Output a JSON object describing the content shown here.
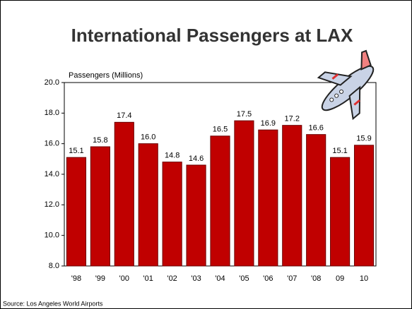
{
  "chart_data": {
    "type": "bar",
    "title": "International Passengers at LAX",
    "y_label": "Passengers (Millions)",
    "source": "Source:  Los Angeles World Airports",
    "categories": [
      "'98",
      "'99",
      "'00",
      "'01",
      "'02",
      "'03",
      "'04",
      "'05",
      "'06",
      "'07",
      "'08",
      "09",
      "10"
    ],
    "values": [
      15.1,
      15.8,
      17.4,
      16.0,
      14.8,
      14.6,
      16.5,
      17.5,
      16.9,
      17.2,
      16.6,
      15.1,
      15.9
    ],
    "value_labels": [
      "15.1",
      "15.8",
      "17.4",
      "16.0",
      "14.8",
      "14.6",
      "16.5",
      "17.5",
      "16.9",
      "17.2",
      "16.6",
      "15.1",
      "15.9"
    ],
    "color": "#c00000",
    "ylim": [
      8,
      20
    ],
    "yticks": [
      {
        "value": 8,
        "label": "8.0"
      },
      {
        "value": 10,
        "label": "10.0"
      },
      {
        "value": 12,
        "label": "12.0"
      },
      {
        "value": 14,
        "label": "14.0"
      },
      {
        "value": 16,
        "label": "16.0"
      },
      {
        "value": 18,
        "label": "18.0"
      },
      {
        "value": 20,
        "label": "20.0"
      }
    ]
  }
}
